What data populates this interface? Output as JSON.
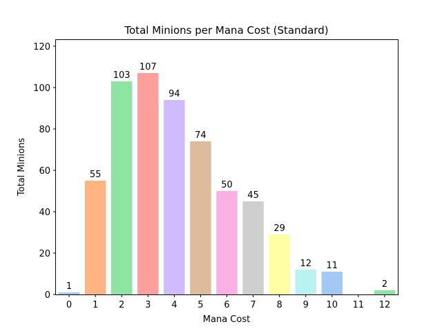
{
  "chart_data": {
    "type": "bar",
    "title": "Total Minions per Mana Cost (Standard)",
    "xlabel": "Mana Cost",
    "ylabel": "Total Minions",
    "categories": [
      "0",
      "1",
      "2",
      "3",
      "4",
      "5",
      "6",
      "7",
      "8",
      "9",
      "10",
      "11",
      "12"
    ],
    "values": [
      1,
      55,
      103,
      107,
      94,
      74,
      50,
      45,
      29,
      12,
      11,
      null,
      2
    ],
    "data_labels": [
      "1",
      "55",
      "103",
      "107",
      "94",
      "74",
      "50",
      "45",
      "29",
      "12",
      "11",
      "",
      "2"
    ],
    "colors": [
      "#a1c9f4",
      "#ffb482",
      "#8de5a1",
      "#ff9f9b",
      "#d0bbff",
      "#debb9b",
      "#fab0e4",
      "#cfcfcf",
      "#fffea3",
      "#b9f2f0",
      "#a1c9f4",
      "#ffb482",
      "#8de5a1"
    ],
    "ylim": [
      0,
      123
    ],
    "yticks": [
      0,
      20,
      40,
      60,
      80,
      100,
      120
    ],
    "grid": false,
    "legend": "none"
  }
}
